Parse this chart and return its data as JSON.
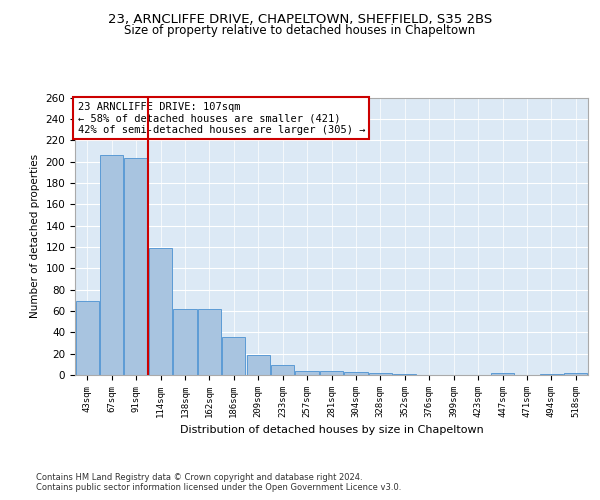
{
  "title1": "23, ARNCLIFFE DRIVE, CHAPELTOWN, SHEFFIELD, S35 2BS",
  "title2": "Size of property relative to detached houses in Chapeltown",
  "xlabel": "Distribution of detached houses by size in Chapeltown",
  "ylabel": "Number of detached properties",
  "categories": [
    "43sqm",
    "67sqm",
    "91sqm",
    "114sqm",
    "138sqm",
    "162sqm",
    "186sqm",
    "209sqm",
    "233sqm",
    "257sqm",
    "281sqm",
    "304sqm",
    "328sqm",
    "352sqm",
    "376sqm",
    "399sqm",
    "423sqm",
    "447sqm",
    "471sqm",
    "494sqm",
    "518sqm"
  ],
  "values": [
    69,
    206,
    203,
    119,
    62,
    62,
    36,
    19,
    9,
    4,
    4,
    3,
    2,
    1,
    0,
    0,
    0,
    2,
    0,
    1,
    2
  ],
  "bar_color": "#a8c4e0",
  "bar_edge_color": "#5b9bd5",
  "vline_x": 2.5,
  "vline_color": "#cc0000",
  "annotation_title": "23 ARNCLIFFE DRIVE: 107sqm",
  "annotation_line2": "← 58% of detached houses are smaller (421)",
  "annotation_line3": "42% of semi-detached houses are larger (305) →",
  "annotation_box_color": "#ffffff",
  "annotation_box_edge": "#cc0000",
  "footer1": "Contains HM Land Registry data © Crown copyright and database right 2024.",
  "footer2": "Contains public sector information licensed under the Open Government Licence v3.0.",
  "ylim": [
    0,
    260
  ],
  "yticks": [
    0,
    20,
    40,
    60,
    80,
    100,
    120,
    140,
    160,
    180,
    200,
    220,
    240,
    260
  ],
  "bg_color": "#dce9f5",
  "fig_bg": "#ffffff",
  "title1_fontsize": 9.5,
  "title2_fontsize": 8.5
}
